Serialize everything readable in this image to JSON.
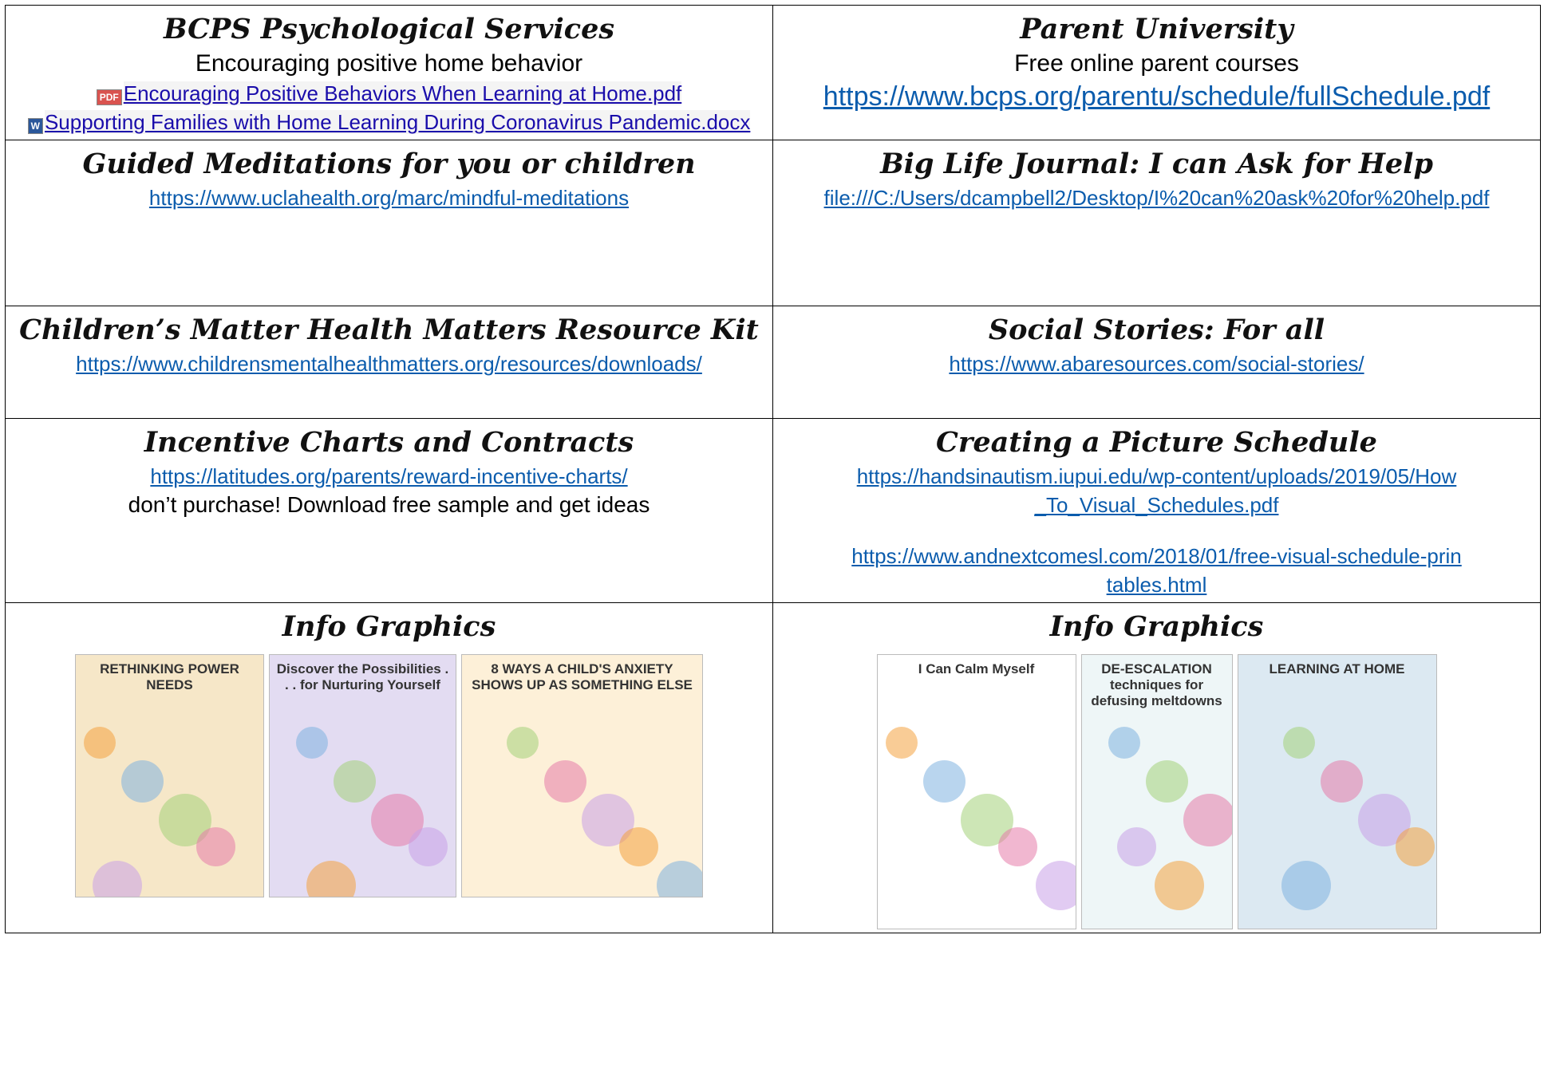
{
  "table": {
    "rows": [
      [
        {
          "title": "BCPS Psychological Services",
          "text": "Encouraging positive home behavior",
          "files": [
            {
              "icon": "PDF",
              "text": "Encouraging Positive Behaviors When Learning at Home.pdf"
            },
            {
              "icon": "W",
              "text": "Supporting Families with Home Learning During Coronavirus Pandemic.docx"
            }
          ]
        },
        {
          "title": "Parent University",
          "text": "Free online parent courses",
          "big_link": "https://www.bcps.org/parentu/schedule/fullSchedule.pdf"
        }
      ],
      [
        {
          "title": "Guided Meditations for you or children",
          "links": [
            "https://www.uclahealth.org/marc/mindful-meditations"
          ]
        },
        {
          "title": "Big Life Journal: I can Ask for Help",
          "links": [
            "file:///C:/Users/dcampbell2/Desktop/I%20can%20ask%20for%20help.pdf"
          ]
        }
      ],
      [
        {
          "title": "Children’s Matter Health Matters Resource Kit",
          "links": [
            "https://www.childrensmentalhealthmatters.org/resources/downloads/"
          ]
        },
        {
          "title": "Social Stories: For all",
          "links": [
            "https://www.abaresources.com/social-stories/"
          ]
        }
      ],
      [
        {
          "title": "Incentive Charts and Contracts",
          "links": [
            "https://latitudes.org/parents/reward-incentive-charts/"
          ],
          "note": "don’t purchase! Download free sample and get ideas"
        },
        {
          "title": "Creating a Picture Schedule",
          "links": [
            "https://handsinautism.iupui.edu/wp-content/uploads/2019/05/How_To_Visual_Schedules.pdf",
            "https://www.andnextcomesl.com/2018/01/free-visual-schedule-printables.html"
          ]
        }
      ],
      [
        {
          "title": "Info Graphics",
          "graphics": [
            "RETHINKING POWER NEEDS",
            "Discover the Possibilities . . . for Nurturing Yourself",
            "8 WAYS A CHILD'S ANXIETY SHOWS UP AS SOMETHING ELSE"
          ]
        },
        {
          "title": "Info Graphics",
          "graphics": [
            "I Can Calm Myself",
            "DE-ESCALATION techniques for defusing meltdowns",
            "LEARNING AT HOME"
          ]
        }
      ]
    ]
  }
}
